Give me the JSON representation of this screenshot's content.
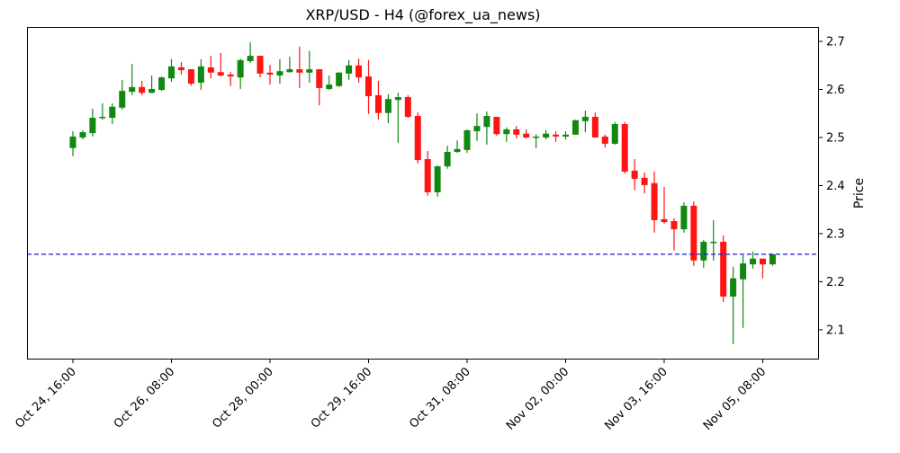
{
  "chart_data": {
    "type": "candlestick",
    "title": "XRP/USD - H4 (@forex_ua_news)",
    "xlabel": "",
    "ylabel": "Price",
    "ylim": [
      2.038,
      2.73
    ],
    "grid": false,
    "y_ticks": [
      2.1,
      2.2,
      2.3,
      2.4,
      2.5,
      2.6,
      2.7
    ],
    "y_tick_labels": [
      "2.1",
      "2.2",
      "2.3",
      "2.4",
      "2.5",
      "2.6",
      "2.7"
    ],
    "x_ticks": [
      {
        "index": 0,
        "label": "Oct 24, 16:00"
      },
      {
        "index": 10,
        "label": "Oct 26, 08:00"
      },
      {
        "index": 20,
        "label": "Oct 28, 00:00"
      },
      {
        "index": 30,
        "label": "Oct 29, 16:00"
      },
      {
        "index": 40,
        "label": "Oct 31, 08:00"
      },
      {
        "index": 50,
        "label": "Nov 02, 00:00"
      },
      {
        "index": 60,
        "label": "Nov 03, 16:00"
      },
      {
        "index": 70,
        "label": "Nov 05, 08:00"
      }
    ],
    "reference_line": {
      "value": 2.257,
      "style": "dashed",
      "color": "#1a1acc"
    },
    "colors": {
      "up": "#118811",
      "down": "#ff1414"
    },
    "ohlc_fields": [
      "open",
      "high",
      "low",
      "close"
    ],
    "candles": [
      [
        2.478,
        2.513,
        2.461,
        2.502
      ],
      [
        2.5,
        2.515,
        2.496,
        2.511
      ],
      [
        2.509,
        2.56,
        2.502,
        2.541
      ],
      [
        2.541,
        2.571,
        2.537,
        2.543
      ],
      [
        2.541,
        2.571,
        2.528,
        2.564
      ],
      [
        2.562,
        2.62,
        2.558,
        2.597
      ],
      [
        2.595,
        2.653,
        2.588,
        2.605
      ],
      [
        2.605,
        2.618,
        2.588,
        2.593
      ],
      [
        2.593,
        2.629,
        2.592,
        2.601
      ],
      [
        2.599,
        2.627,
        2.597,
        2.625
      ],
      [
        2.623,
        2.663,
        2.616,
        2.648
      ],
      [
        2.646,
        2.657,
        2.631,
        2.64
      ],
      [
        2.642,
        2.642,
        2.608,
        2.612
      ],
      [
        2.614,
        2.663,
        2.599,
        2.648
      ],
      [
        2.646,
        2.67,
        2.623,
        2.635
      ],
      [
        2.636,
        2.676,
        2.627,
        2.629
      ],
      [
        2.631,
        2.636,
        2.607,
        2.627
      ],
      [
        2.625,
        2.664,
        2.601,
        2.661
      ],
      [
        2.659,
        2.698,
        2.655,
        2.67
      ],
      [
        2.67,
        2.67,
        2.625,
        2.633
      ],
      [
        2.635,
        2.651,
        2.61,
        2.631
      ],
      [
        2.629,
        2.663,
        2.612,
        2.638
      ],
      [
        2.636,
        2.668,
        2.635,
        2.642
      ],
      [
        2.642,
        2.689,
        2.603,
        2.635
      ],
      [
        2.635,
        2.68,
        2.614,
        2.642
      ],
      [
        2.642,
        2.642,
        2.567,
        2.603
      ],
      [
        2.601,
        2.629,
        2.599,
        2.61
      ],
      [
        2.607,
        2.636,
        2.605,
        2.635
      ],
      [
        2.633,
        2.661,
        2.62,
        2.65
      ],
      [
        2.65,
        2.664,
        2.614,
        2.625
      ],
      [
        2.627,
        2.661,
        2.549,
        2.586
      ],
      [
        2.588,
        2.618,
        2.537,
        2.551
      ],
      [
        2.551,
        2.59,
        2.53,
        2.58
      ],
      [
        2.578,
        2.593,
        2.489,
        2.584
      ],
      [
        2.584,
        2.588,
        2.541,
        2.543
      ],
      [
        2.545,
        2.552,
        2.446,
        2.453
      ],
      [
        2.455,
        2.472,
        2.379,
        2.386
      ],
      [
        2.386,
        2.442,
        2.377,
        2.44
      ],
      [
        2.44,
        2.483,
        2.435,
        2.47
      ],
      [
        2.47,
        2.494,
        2.468,
        2.476
      ],
      [
        2.474,
        2.517,
        2.468,
        2.515
      ],
      [
        2.513,
        2.55,
        2.493,
        2.524
      ],
      [
        2.522,
        2.554,
        2.485,
        2.545
      ],
      [
        2.543,
        2.543,
        2.504,
        2.507
      ],
      [
        2.507,
        2.521,
        2.491,
        2.517
      ],
      [
        2.517,
        2.524,
        2.498,
        2.506
      ],
      [
        2.508,
        2.517,
        2.498,
        2.5
      ],
      [
        2.5,
        2.507,
        2.478,
        2.502
      ],
      [
        2.5,
        2.515,
        2.496,
        2.508
      ],
      [
        2.506,
        2.513,
        2.491,
        2.502
      ],
      [
        2.502,
        2.513,
        2.496,
        2.506
      ],
      [
        2.506,
        2.537,
        2.506,
        2.536
      ],
      [
        2.534,
        2.556,
        2.511,
        2.543
      ],
      [
        2.543,
        2.552,
        2.5,
        2.5
      ],
      [
        2.502,
        2.506,
        2.479,
        2.487
      ],
      [
        2.487,
        2.532,
        2.485,
        2.528
      ],
      [
        2.528,
        2.532,
        2.425,
        2.429
      ],
      [
        2.431,
        2.455,
        2.39,
        2.414
      ],
      [
        2.416,
        2.427,
        2.384,
        2.401
      ],
      [
        2.405,
        2.429,
        2.302,
        2.328
      ],
      [
        2.33,
        2.397,
        2.321,
        2.324
      ],
      [
        2.326,
        2.332,
        2.265,
        2.309
      ],
      [
        2.309,
        2.365,
        2.302,
        2.358
      ],
      [
        2.358,
        2.367,
        2.233,
        2.244
      ],
      [
        2.244,
        2.287,
        2.229,
        2.283
      ],
      [
        2.282,
        2.328,
        2.244,
        2.283
      ],
      [
        2.283,
        2.296,
        2.158,
        2.169
      ],
      [
        2.169,
        2.231,
        2.07,
        2.207
      ],
      [
        2.205,
        2.255,
        2.104,
        2.238
      ],
      [
        2.236,
        2.263,
        2.227,
        2.248
      ],
      [
        2.248,
        2.248,
        2.207,
        2.236
      ],
      [
        2.236,
        2.257,
        2.233,
        2.257
      ]
    ]
  }
}
